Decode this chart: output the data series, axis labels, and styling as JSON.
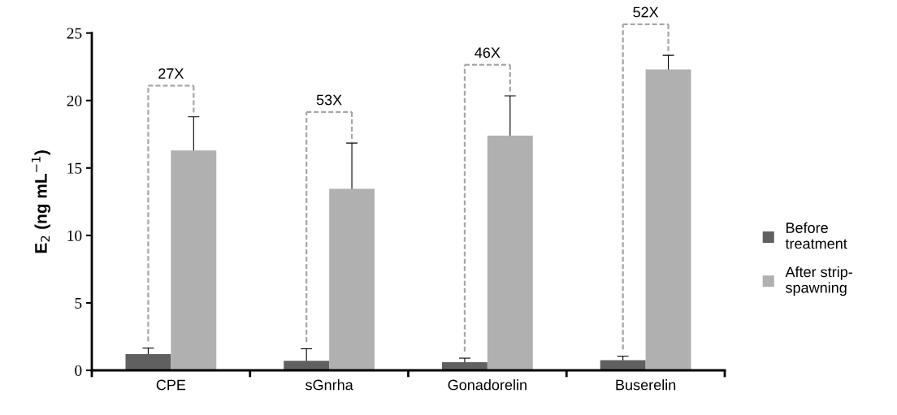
{
  "chart_data": {
    "type": "bar",
    "ylabel": "E$_{2}$ (ng mL$^{−1}$)",
    "categories": [
      "CPE",
      "sGnrha",
      "Gonadorelin",
      "Buserelin"
    ],
    "series": [
      {
        "name": "Before treatment",
        "color": "#606060",
        "values": [
          1.2,
          0.7,
          0.6,
          0.75
        ],
        "errors": [
          0.45,
          0.9,
          0.3,
          0.3
        ]
      },
      {
        "name": "After strip-spawning",
        "color": "#b0b0b0",
        "values": [
          16.3,
          13.45,
          17.4,
          22.3
        ],
        "errors": [
          2.5,
          3.4,
          2.95,
          1.05
        ]
      }
    ],
    "annotations": [
      "27X",
      "53X",
      "46X",
      "52X"
    ],
    "ylim": [
      0,
      25
    ],
    "yticks": [
      0,
      5,
      10,
      15,
      20,
      25
    ],
    "grid": false,
    "legend": "right"
  }
}
